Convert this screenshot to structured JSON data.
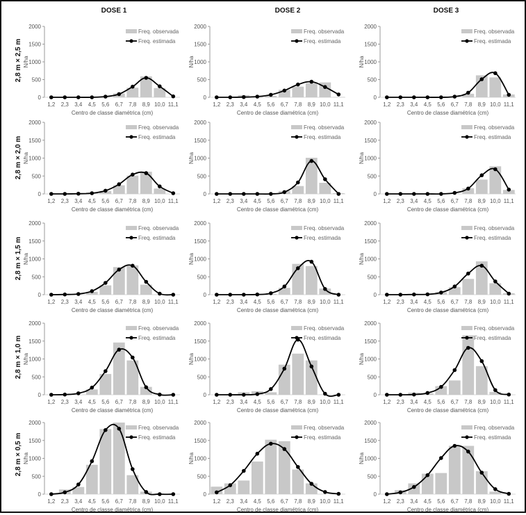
{
  "figure": {
    "column_titles": [
      "DOSE 1",
      "DOSE 2",
      "DOSE 3"
    ],
    "row_labels": [
      "2,8 m × 2,5 m",
      "2,8 m × 2,0 m",
      "2,8 m × 1,5 m",
      "2,8 m × 1,0 m",
      "2,8 m × 0,5 m"
    ],
    "colors": {
      "bar": "#c8c8c8",
      "line": "#000000",
      "axis": "#999999"
    }
  },
  "chart_data": [
    {
      "type": "bar",
      "row": "2,8 m × 2,5 m",
      "column": "DOSE 1",
      "xlabel": "Centro de classe diamétrica (cm)",
      "ylabel": "N/ha",
      "ylim": [
        0,
        2000
      ],
      "yticks": [
        0,
        500,
        1000,
        1500,
        2000
      ],
      "categories": [
        "1,2",
        "2,3",
        "3,4",
        "4,5",
        "5,6",
        "6,7",
        "7,8",
        "8,9",
        "10,0",
        "11,1"
      ],
      "legend": "top-right",
      "series": [
        {
          "name": "Freq. observada",
          "kind": "bar",
          "values": [
            0,
            0,
            0,
            0,
            10,
            110,
            270,
            590,
            260,
            0
          ]
        },
        {
          "name": "Freq. estimada",
          "kind": "line",
          "values": [
            0,
            0,
            0,
            0,
            20,
            90,
            300,
            550,
            310,
            25
          ]
        }
      ]
    },
    {
      "type": "bar",
      "row": "2,8 m × 2,5 m",
      "column": "DOSE 2",
      "xlabel": "Centro de classe diamétrica (cm)",
      "ylabel": "N/ha",
      "ylim": [
        0,
        2000
      ],
      "yticks": [
        0,
        500,
        1000,
        1500,
        2000
      ],
      "categories": [
        "1,2",
        "2,3",
        "3,4",
        "4,5",
        "5,6",
        "6,7",
        "7,8",
        "8,9",
        "10,0",
        "11,1"
      ],
      "legend": "top-right",
      "series": [
        {
          "name": "Freq. observada",
          "kind": "bar",
          "values": [
            0,
            0,
            60,
            20,
            40,
            210,
            300,
            400,
            420,
            10
          ]
        },
        {
          "name": "Freq. estimada",
          "kind": "line",
          "values": [
            0,
            0,
            5,
            20,
            70,
            190,
            360,
            440,
            290,
            80
          ]
        }
      ]
    },
    {
      "type": "bar",
      "row": "2,8 m × 2,5 m",
      "column": "DOSE 3",
      "xlabel": "Centro de classe diamétrica (cm)",
      "ylabel": "N/ha",
      "ylim": [
        0,
        2000
      ],
      "yticks": [
        0,
        500,
        1000,
        1500,
        2000
      ],
      "categories": [
        "1,2",
        "2,3",
        "3,4",
        "4,5",
        "5,6",
        "6,7",
        "7,8",
        "8,9",
        "10,0",
        "11,1"
      ],
      "legend": "top-right",
      "series": [
        {
          "name": "Freq. observada",
          "kind": "bar",
          "values": [
            0,
            0,
            0,
            0,
            0,
            10,
            100,
            620,
            560,
            80
          ]
        },
        {
          "name": "Freq. estimada",
          "kind": "line",
          "values": [
            0,
            0,
            0,
            0,
            0,
            20,
            130,
            510,
            680,
            70
          ]
        }
      ]
    },
    {
      "type": "bar",
      "row": "2,8 m × 2,0 m",
      "column": "DOSE 1",
      "xlabel": "Centro de classe diamétrica (cm)",
      "ylabel": "N/ha",
      "ylim": [
        0,
        2000
      ],
      "yticks": [
        0,
        500,
        1000,
        1500,
        2000
      ],
      "categories": [
        "1,2",
        "2,3",
        "3,4",
        "4,5",
        "5,6",
        "6,7",
        "7,8",
        "8,9",
        "10,0",
        "11,1"
      ],
      "legend": "top-right",
      "series": [
        {
          "name": "Freq. observada",
          "kind": "bar",
          "values": [
            0,
            0,
            0,
            40,
            80,
            240,
            510,
            620,
            150,
            0
          ]
        },
        {
          "name": "Freq. estimada",
          "kind": "line",
          "values": [
            0,
            0,
            5,
            20,
            90,
            270,
            540,
            580,
            210,
            20
          ]
        }
      ]
    },
    {
      "type": "bar",
      "row": "2,8 m × 2,0 m",
      "column": "DOSE 2",
      "xlabel": "Centro de classe diamétrica (cm)",
      "ylabel": "N/ha",
      "ylim": [
        0,
        2000
      ],
      "yticks": [
        0,
        500,
        1000,
        1500,
        2000
      ],
      "categories": [
        "1,2",
        "2,3",
        "3,4",
        "4,5",
        "5,6",
        "6,7",
        "7,8",
        "8,9",
        "10,0",
        "11,1"
      ],
      "legend": "top-right",
      "series": [
        {
          "name": "Freq. observada",
          "kind": "bar",
          "values": [
            0,
            0,
            0,
            0,
            0,
            80,
            220,
            1010,
            310,
            20
          ]
        },
        {
          "name": "Freq. estimada",
          "kind": "line",
          "values": [
            0,
            0,
            0,
            0,
            0,
            50,
            320,
            920,
            410,
            0
          ]
        }
      ]
    },
    {
      "type": "bar",
      "row": "2,8 m × 2,0 m",
      "column": "DOSE 3",
      "xlabel": "Centro de classe diamétrica (cm)",
      "ylabel": "N/ha",
      "ylim": [
        0,
        2000
      ],
      "yticks": [
        0,
        500,
        1000,
        1500,
        2000
      ],
      "categories": [
        "1,2",
        "2,3",
        "3,4",
        "4,5",
        "5,6",
        "6,7",
        "7,8",
        "8,9",
        "10,0",
        "11,1"
      ],
      "legend": "top-right",
      "series": [
        {
          "name": "Freq. observada",
          "kind": "bar",
          "values": [
            0,
            0,
            0,
            0,
            0,
            10,
            160,
            400,
            770,
            110
          ]
        },
        {
          "name": "Freq. estimada",
          "kind": "line",
          "values": [
            0,
            0,
            0,
            0,
            0,
            30,
            150,
            520,
            690,
            120
          ]
        }
      ]
    },
    {
      "type": "bar",
      "row": "2,8 m × 1,5 m",
      "column": "DOSE 1",
      "xlabel": "Centro de classe diamétrica (cm)",
      "ylabel": "N/ha",
      "ylim": [
        0,
        2000
      ],
      "yticks": [
        0,
        500,
        1000,
        1500,
        2000
      ],
      "categories": [
        "1,2",
        "2,3",
        "3,4",
        "4,5",
        "5,6",
        "6,7",
        "7,8",
        "8,9",
        "10,0",
        "11,1"
      ],
      "legend": "top-right",
      "series": [
        {
          "name": "Freq. observada",
          "kind": "bar",
          "values": [
            0,
            0,
            0,
            80,
            260,
            770,
            820,
            280,
            0,
            0
          ]
        },
        {
          "name": "Freq. estimada",
          "kind": "line",
          "values": [
            0,
            5,
            20,
            100,
            330,
            700,
            810,
            360,
            30,
            0
          ]
        }
      ]
    },
    {
      "type": "bar",
      "row": "2,8 m × 1,5 m",
      "column": "DOSE 2",
      "xlabel": "Centro de classe diamétrica (cm)",
      "ylabel": "N/ha",
      "ylim": [
        0,
        2000
      ],
      "yticks": [
        0,
        500,
        1000,
        1500,
        2000
      ],
      "categories": [
        "1,2",
        "2,3",
        "3,4",
        "4,5",
        "5,6",
        "6,7",
        "7,8",
        "8,9",
        "10,0",
        "11,1"
      ],
      "legend": "top-right",
      "series": [
        {
          "name": "Freq. observada",
          "kind": "bar",
          "values": [
            0,
            0,
            0,
            0,
            20,
            190,
            860,
            800,
            170,
            0
          ]
        },
        {
          "name": "Freq. estimada",
          "kind": "line",
          "values": [
            0,
            0,
            0,
            5,
            40,
            230,
            740,
            920,
            160,
            0
          ]
        }
      ]
    },
    {
      "type": "bar",
      "row": "2,8 m × 1,5 m",
      "column": "DOSE 3",
      "xlabel": "Centro de classe diamétrica (cm)",
      "ylabel": "N/ha",
      "ylim": [
        0,
        2000
      ],
      "yticks": [
        0,
        500,
        1000,
        1500,
        2000
      ],
      "categories": [
        "1,2",
        "2,3",
        "3,4",
        "4,5",
        "5,6",
        "6,7",
        "7,8",
        "8,9",
        "10,0",
        "11,1"
      ],
      "legend": "top-right",
      "series": [
        {
          "name": "Freq. observada",
          "kind": "bar",
          "values": [
            0,
            0,
            0,
            0,
            70,
            210,
            440,
            930,
            320,
            40
          ]
        },
        {
          "name": "Freq. estimada",
          "kind": "line",
          "values": [
            0,
            0,
            5,
            10,
            60,
            230,
            590,
            810,
            370,
            30
          ]
        }
      ]
    },
    {
      "type": "bar",
      "row": "2,8 m × 1,0 m",
      "column": "DOSE 1",
      "xlabel": "Centro de classe diamétrica (cm)",
      "ylabel": "N/ha",
      "ylim": [
        0,
        2000
      ],
      "yticks": [
        0,
        500,
        1000,
        1500,
        2000
      ],
      "categories": [
        "1,2",
        "2,3",
        "3,4",
        "4,5",
        "5,6",
        "6,7",
        "7,8",
        "8,9",
        "10,0",
        "11,1"
      ],
      "legend": "top-right",
      "series": [
        {
          "name": "Freq. observada",
          "kind": "bar",
          "values": [
            0,
            0,
            0,
            150,
            580,
            1460,
            960,
            220,
            0,
            0
          ]
        },
        {
          "name": "Freq. estimada",
          "kind": "line",
          "values": [
            0,
            5,
            40,
            200,
            660,
            1260,
            1040,
            210,
            5,
            0
          ]
        }
      ]
    },
    {
      "type": "bar",
      "row": "2,8 m × 1,0 m",
      "column": "DOSE 2",
      "xlabel": "Centro de classe diamétrica (cm)",
      "ylabel": "N/ha",
      "ylim": [
        0,
        2000
      ],
      "yticks": [
        0,
        500,
        1000,
        1500,
        2000
      ],
      "categories": [
        "1,2",
        "2,3",
        "3,4",
        "4,5",
        "5,6",
        "6,7",
        "7,8",
        "8,9",
        "10,0",
        "11,1"
      ],
      "legend": "top-right",
      "series": [
        {
          "name": "Freq. observada",
          "kind": "bar",
          "values": [
            0,
            0,
            70,
            100,
            70,
            840,
            1150,
            960,
            10,
            0
          ]
        },
        {
          "name": "Freq. estimada",
          "kind": "line",
          "values": [
            0,
            0,
            0,
            20,
            160,
            730,
            1540,
            790,
            30,
            0
          ]
        }
      ]
    },
    {
      "type": "bar",
      "row": "2,8 m × 1,0 m",
      "column": "DOSE 3",
      "xlabel": "Centro de classe diamétrica (cm)",
      "ylabel": "N/ha",
      "ylim": [
        0,
        2000
      ],
      "yticks": [
        0,
        500,
        1000,
        1500,
        2000
      ],
      "categories": [
        "1,2",
        "2,3",
        "3,4",
        "4,5",
        "5,6",
        "6,7",
        "7,8",
        "8,9",
        "10,0",
        "11,1"
      ],
      "legend": "top-right",
      "series": [
        {
          "name": "Freq. observada",
          "kind": "bar",
          "values": [
            0,
            0,
            60,
            40,
            240,
            400,
            1660,
            800,
            80,
            0
          ]
        },
        {
          "name": "Freq. estimada",
          "kind": "line",
          "values": [
            0,
            0,
            5,
            50,
            220,
            690,
            1310,
            940,
            130,
            5
          ]
        }
      ]
    },
    {
      "type": "bar",
      "row": "2,8 m × 0,5 m",
      "column": "DOSE 1",
      "xlabel": "Centro de classe diamétrica (cm)",
      "ylabel": "N/ha",
      "ylim": [
        0,
        2000
      ],
      "yticks": [
        0,
        500,
        1000,
        1500,
        2000
      ],
      "categories": [
        "1,2",
        "2,3",
        "3,4",
        "4,5",
        "5,6",
        "6,7",
        "7,8",
        "8,9",
        "10,0",
        "11,1"
      ],
      "legend": "top-right",
      "series": [
        {
          "name": "Freq. observada",
          "kind": "bar",
          "values": [
            0,
            130,
            200,
            820,
            1820,
            2000,
            530,
            70,
            0,
            0
          ]
        },
        {
          "name": "Freq. estimada",
          "kind": "line",
          "values": [
            0,
            50,
            270,
            920,
            1790,
            1830,
            700,
            60,
            0,
            0
          ]
        }
      ]
    },
    {
      "type": "bar",
      "row": "2,8 m × 0,5 m",
      "column": "DOSE 2",
      "xlabel": "Centro de classe diamétrica (cm)",
      "ylabel": "N/ha",
      "ylim": [
        0,
        2000
      ],
      "yticks": [
        0,
        500,
        1000,
        1500,
        2000
      ],
      "categories": [
        "1,2",
        "2,3",
        "3,4",
        "4,5",
        "5,6",
        "6,7",
        "7,8",
        "8,9",
        "10,0",
        "11,1"
      ],
      "legend": "top-right",
      "series": [
        {
          "name": "Freq. observada",
          "kind": "bar",
          "values": [
            210,
            300,
            380,
            910,
            1520,
            1480,
            690,
            300,
            0,
            0
          ]
        },
        {
          "name": "Freq. estimada",
          "kind": "line",
          "values": [
            50,
            250,
            650,
            1130,
            1410,
            1260,
            760,
            290,
            60,
            10
          ]
        }
      ]
    },
    {
      "type": "bar",
      "row": "2,8 m × 0,5 m",
      "column": "DOSE 3",
      "xlabel": "Centro de classe diamétrica (cm)",
      "ylabel": "N/ha",
      "ylim": [
        0,
        2000
      ],
      "yticks": [
        0,
        500,
        1000,
        1500,
        2000
      ],
      "categories": [
        "1,2",
        "2,3",
        "3,4",
        "4,5",
        "5,6",
        "6,7",
        "7,8",
        "8,9",
        "10,0",
        "11,1"
      ],
      "legend": "top-right",
      "series": [
        {
          "name": "Freq. observada",
          "kind": "bar",
          "values": [
            0,
            110,
            300,
            570,
            590,
            1350,
            1350,
            640,
            70,
            0
          ]
        },
        {
          "name": "Freq. estimada",
          "kind": "line",
          "values": [
            0,
            50,
            200,
            530,
            1010,
            1350,
            1190,
            600,
            140,
            10
          ]
        }
      ]
    }
  ]
}
